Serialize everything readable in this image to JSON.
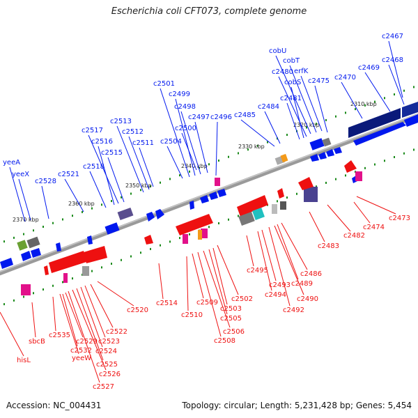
{
  "title": "Escherichia coli CFT073, complete genome",
  "accession": "Accession: NC_004431",
  "summary": "Topology: circular; Length: 5,231,428 bp; Genes: 5,454",
  "colors": {
    "forward": "#0018ee",
    "reverse": "#ee1010",
    "backbone": "#7a7a7a",
    "dot": "#1a8a1a",
    "navy": "#0a1a7a"
  },
  "ticks": [
    "2310 kbp",
    "2320 kbp",
    "2330 kbp",
    "2340 kbp",
    "2350 kbp",
    "2360 kbp",
    "2370 kbp"
  ],
  "top_labels": [
    "c2467",
    "c2468",
    "c2469",
    "c2470",
    "c2475",
    "erfK",
    "cobT",
    "cobU",
    "c2480",
    "cobS",
    "c2481",
    "c2484",
    "c2485",
    "c2496",
    "c2497",
    "c2498",
    "c2499",
    "c2501",
    "c2500",
    "c2504",
    "c2511",
    "c2512",
    "c2513",
    "c2517",
    "c2516",
    "c2515",
    "c2518",
    "c2521",
    "c2528",
    "yeeA",
    "yeeX"
  ],
  "bottom_labels": [
    "c2473",
    "c2474",
    "c2482",
    "c2483",
    "c2486",
    "c2489",
    "c2490",
    "c2492",
    "c2493",
    "c2494",
    "c2495",
    "c2502",
    "c2503",
    "c2505",
    "c2506",
    "c2508",
    "c2509",
    "c2510",
    "c2514",
    "c2520",
    "c2522",
    "c2523",
    "c2524",
    "c2525",
    "c2526",
    "c2527",
    "c2529",
    "c2532",
    "yeeW",
    "c2535",
    "sbcB",
    "hisL"
  ]
}
